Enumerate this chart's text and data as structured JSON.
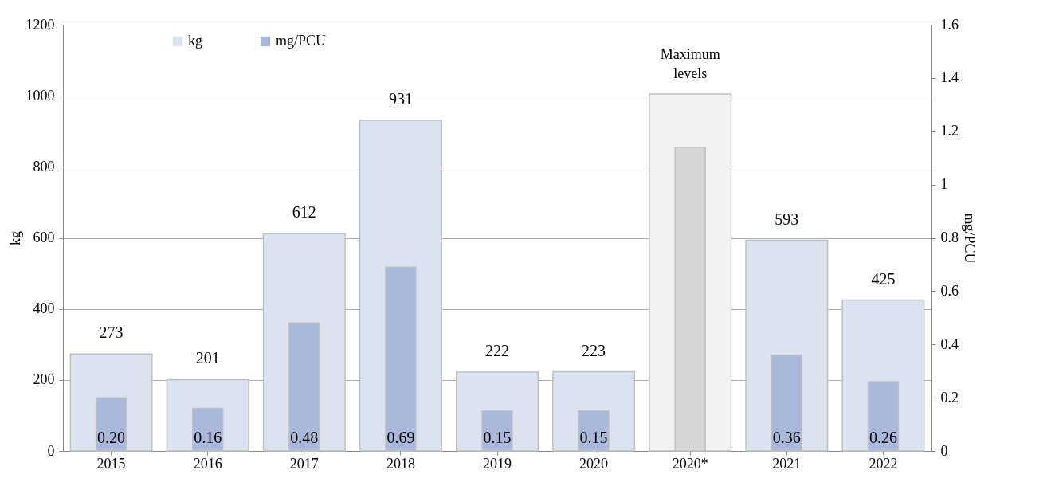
{
  "chart_data": {
    "type": "bar",
    "categories": [
      "2015",
      "2016",
      "2017",
      "2018",
      "2019",
      "2020",
      "2020*",
      "2021",
      "2022"
    ],
    "series": [
      {
        "name": "kg",
        "color": "#dce3f0",
        "colors": [
          "#dce3f0",
          "#dce3f0",
          "#dce3f0",
          "#dce3f0",
          "#dce3f0",
          "#dce3f0",
          "#f2f2f2",
          "#dce3f0",
          "#dce3f0"
        ],
        "values": [
          273,
          201,
          612,
          931,
          222,
          223,
          1005,
          593,
          425
        ],
        "value_labels": [
          "273",
          "201",
          "612",
          "931",
          "222",
          "223",
          null,
          "593",
          "425"
        ]
      },
      {
        "name": "mg/PCU",
        "axis": "y2",
        "color": "#a9b8db",
        "colors": [
          "#a9b8db",
          "#a9b8db",
          "#a9b8db",
          "#a9b8db",
          "#a9b8db",
          "#a9b8db",
          "#d6d6d6",
          "#a9b8db",
          "#a9b8db"
        ],
        "values": [
          0.2,
          0.16,
          0.48,
          0.69,
          0.15,
          0.15,
          1.14,
          0.36,
          0.26
        ],
        "value_labels": [
          "0.20",
          "0.16",
          "0.48",
          "0.69",
          "0.15",
          "0.15",
          null,
          "0.36",
          "0.26"
        ]
      }
    ],
    "ylabel": "kg",
    "y2label": "mg/PCU",
    "ylim": [
      0,
      1200
    ],
    "yticks": [
      0,
      200,
      400,
      600,
      800,
      1000,
      1200
    ],
    "y2lim": [
      0,
      1.6
    ],
    "y2ticks": [
      0,
      0.2,
      0.4,
      0.6,
      0.8,
      1,
      1.2,
      1.4,
      1.6
    ],
    "annotations": [
      {
        "text": "Maximum levels",
        "x": "2020*",
        "y": 1005
      }
    ],
    "grid": "y",
    "legend": "top left"
  }
}
